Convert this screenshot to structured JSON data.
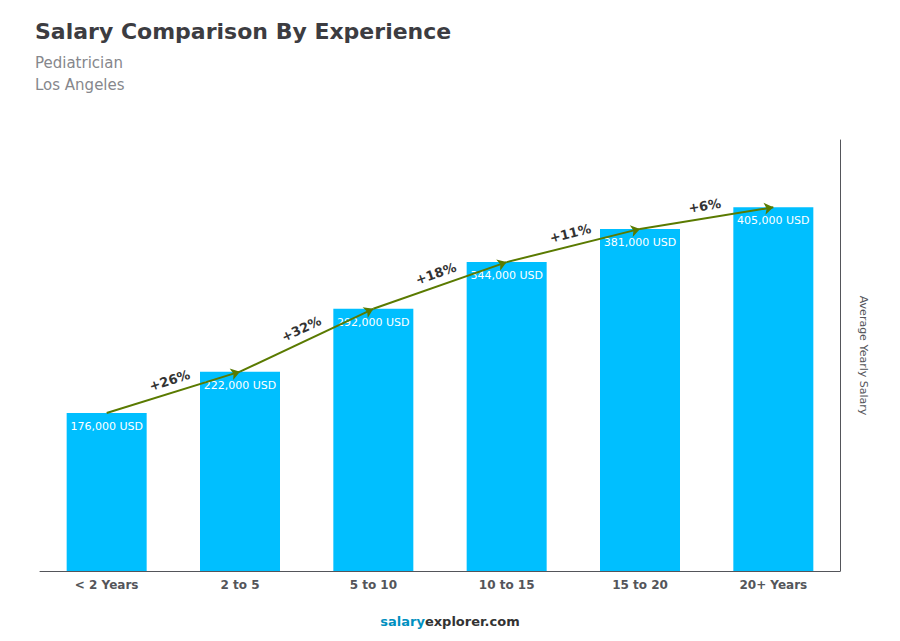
{
  "chart_data": {
    "type": "bar",
    "title": "Salary Comparison By Experience",
    "subtitle": [
      "Pediatrician",
      "Los Angeles"
    ],
    "ylabel": "Average Yearly Salary",
    "categories": [
      "< 2 Years",
      "2 to 5",
      "5 to 10",
      "10 to 15",
      "15 to 20",
      "20+ Years"
    ],
    "values": [
      176000,
      222000,
      292000,
      344000,
      381000,
      405000
    ],
    "value_labels": [
      "176,000 USD",
      "222,000 USD",
      "292,000 USD",
      "344,000 USD",
      "381,000 USD",
      "405,000 USD"
    ],
    "data_labels": true,
    "color": "#00BFFF",
    "ylim": [
      0,
      480000
    ],
    "tick_labels": "x",
    "grid": false,
    "annotations": [
      {
        "text": "+26%",
        "from": "< 2 Years",
        "to": "2 to 5"
      },
      {
        "text": "+32%",
        "from": "2 to 5",
        "to": "5 to 10"
      },
      {
        "text": "+18%",
        "from": "5 to 10",
        "to": "10 to 15"
      },
      {
        "text": "+11%",
        "from": "10 to 15",
        "to": "15 to 20"
      },
      {
        "text": "+6%",
        "from": "15 to 20",
        "to": "20+ Years"
      }
    ],
    "footer": [
      "salary",
      "explorer.com"
    ]
  }
}
